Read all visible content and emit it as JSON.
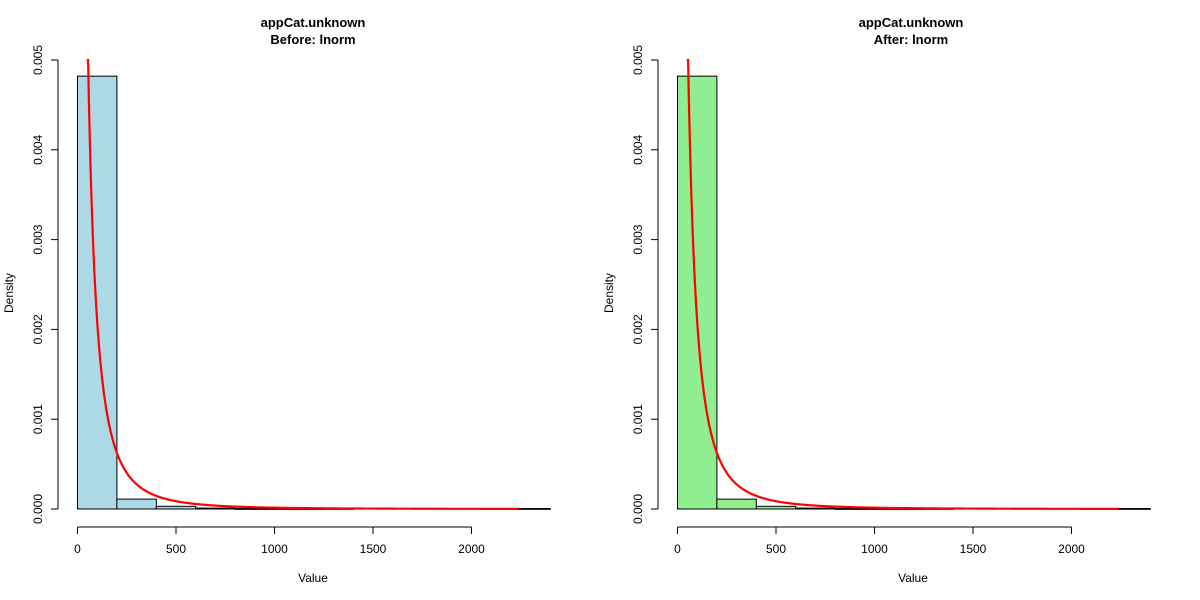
{
  "chart_data": [
    {
      "type": "bar",
      "subtype": "histogram with fitted density curve",
      "title": "appCat.unknown",
      "subtitle": "Before:  lnorm",
      "xlabel": "Value",
      "ylabel": "Density",
      "xlim": [
        0,
        2400
      ],
      "ylim": [
        0,
        0.005
      ],
      "x_ticks": [
        "0",
        "500",
        "1000",
        "1500",
        "2000"
      ],
      "y_ticks": [
        "0.000",
        "0.001",
        "0.002",
        "0.003",
        "0.004",
        "0.005"
      ],
      "bar_color": "#add8e6",
      "curve_color": "#ff0000",
      "bins": [
        {
          "start": 0,
          "end": 200,
          "density": 0.00482
        },
        {
          "start": 200,
          "end": 400,
          "density": 0.00011
        },
        {
          "start": 400,
          "end": 600,
          "density": 3e-05
        },
        {
          "start": 600,
          "end": 800,
          "density": 1e-05
        },
        {
          "start": 800,
          "end": 1000,
          "density": 5e-06
        },
        {
          "start": 1000,
          "end": 1200,
          "density": 5e-06
        },
        {
          "start": 1200,
          "end": 1400,
          "density": 5e-06
        },
        {
          "start": 2200,
          "end": 2400,
          "density": 5e-06
        }
      ],
      "curve": {
        "meanlog": 3.5,
        "sdlog": 1.4,
        "x_from": 47,
        "x_to": 2240
      }
    },
    {
      "type": "bar",
      "subtype": "histogram with fitted density curve",
      "title": "appCat.unknown",
      "subtitle": "After:  lnorm",
      "xlabel": "Value",
      "ylabel": "Density",
      "xlim": [
        0,
        2400
      ],
      "ylim": [
        0,
        0.005
      ],
      "x_ticks": [
        "0",
        "500",
        "1000",
        "1500",
        "2000"
      ],
      "y_ticks": [
        "0.000",
        "0.001",
        "0.002",
        "0.003",
        "0.004",
        "0.005"
      ],
      "bar_color": "#90ee90",
      "curve_color": "#ff0000",
      "bins": [
        {
          "start": 0,
          "end": 200,
          "density": 0.00482
        },
        {
          "start": 200,
          "end": 400,
          "density": 0.00011
        },
        {
          "start": 400,
          "end": 600,
          "density": 3e-05
        },
        {
          "start": 600,
          "end": 800,
          "density": 1e-05
        },
        {
          "start": 800,
          "end": 1000,
          "density": 5e-06
        },
        {
          "start": 1000,
          "end": 1200,
          "density": 5e-06
        },
        {
          "start": 1200,
          "end": 1400,
          "density": 5e-06
        },
        {
          "start": 2200,
          "end": 2400,
          "density": 5e-06
        }
      ],
      "curve": {
        "meanlog": 3.5,
        "sdlog": 1.4,
        "x_from": 47,
        "x_to": 2240
      }
    }
  ]
}
